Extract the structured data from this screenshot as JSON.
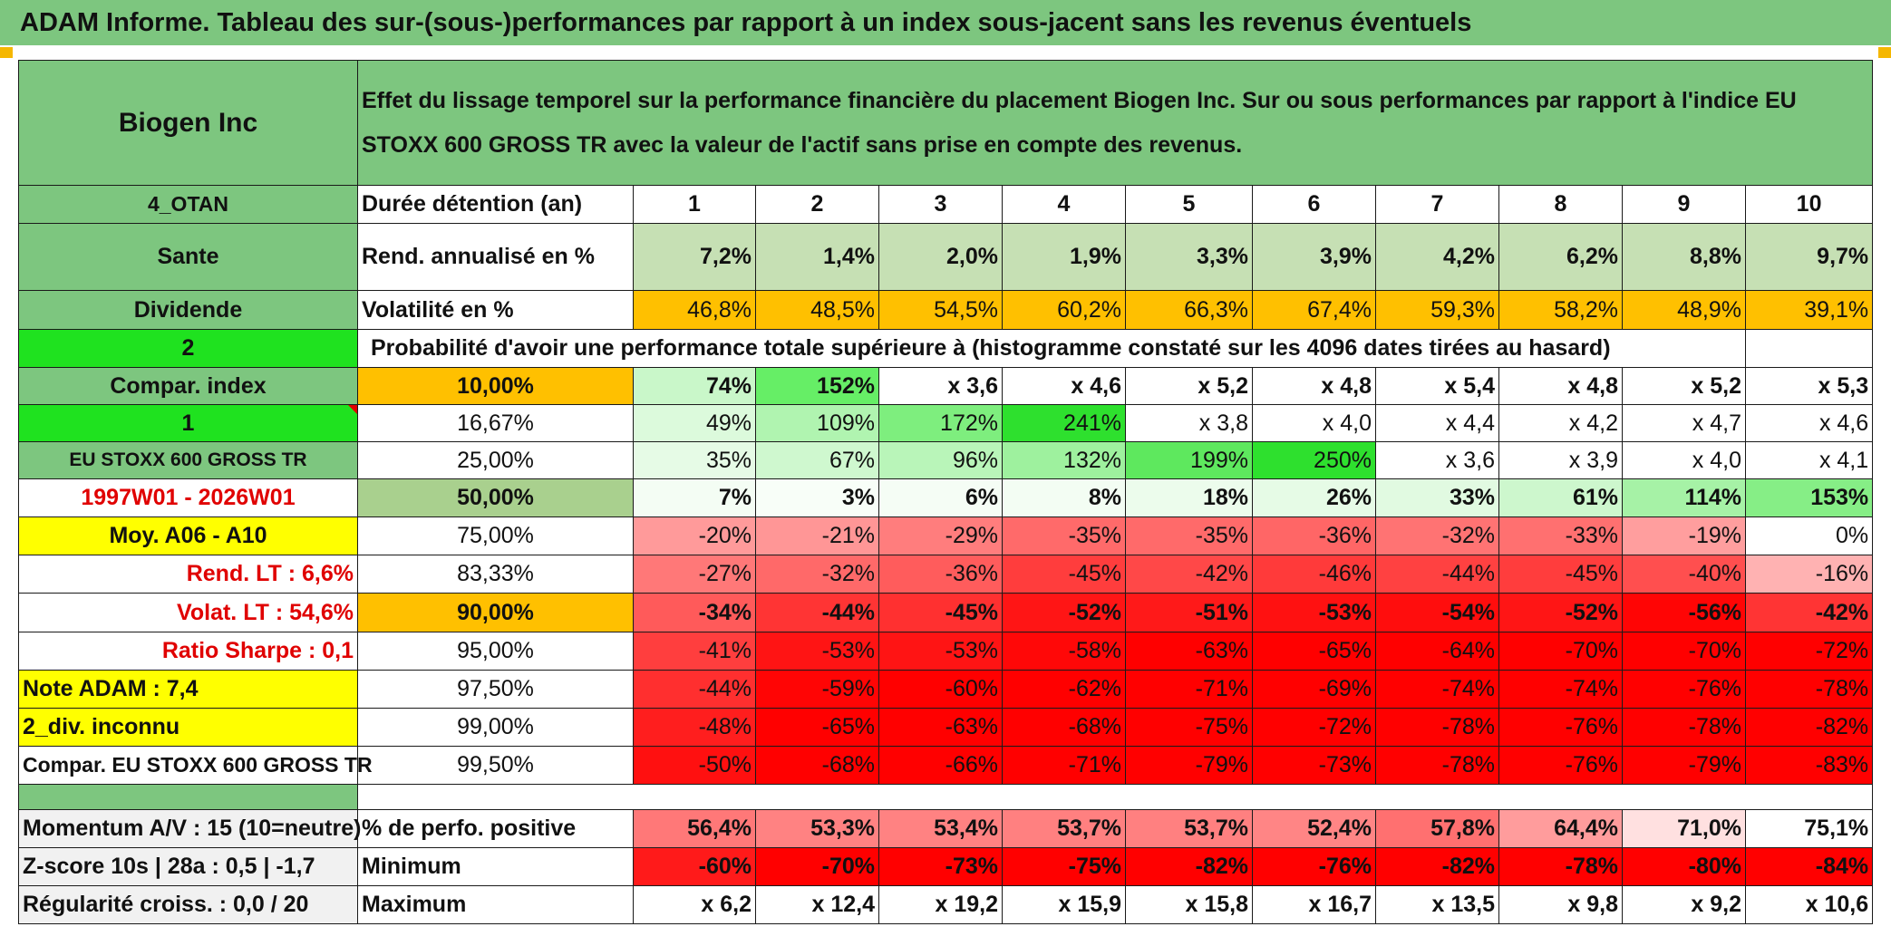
{
  "title": "ADAM Informe. Tableau des sur-(sous-)performances par rapport à un index sous-jacent sans les revenus éventuels",
  "asset_name": "Biogen Inc",
  "header_text": "Effet du lissage temporel sur la performance financière du placement Biogen Inc. Sur ou sous performances par rapport à l'indice EU STOXX 600 GROSS TR avec la valeur de l'actif sans prise en compte des revenus.",
  "colors": {
    "green_header": "#7dc67f",
    "lime": "#1fe21f",
    "yellow": "#ffff00",
    "orange": "#ffc000",
    "red_text": "#e00000"
  },
  "left_labels": {
    "code": "4_OTAN",
    "sector": "Sante",
    "dividend": "Dividende",
    "two": "2",
    "compar_index": "Compar. index",
    "one": "1",
    "index_name": "EU STOXX 600 GROSS TR",
    "period": "1997W01 - 2026W01",
    "moy": "Moy. A06 - A10",
    "rend_lt": "Rend. LT :   6,6%",
    "volat_lt": "Volat. LT :   54,6%",
    "sharpe": "Ratio Sharpe :   0,1",
    "note": "Note ADAM : 7,4",
    "div_inconnu": "2_div. inconnu",
    "compar_full": "Compar. EU STOXX 600 GROSS TR",
    "momentum": "Momentum A/V : 15 (10=neutre)",
    "zscore": "Z-score 10s | 28a : 0,5 | -1,7",
    "regularite": "Régularité croiss. : 0,0 / 20"
  },
  "row_labels": {
    "duree": "Durée détention (an)",
    "rend": "Rend. annualisé en %",
    "volat": "Volatilité en %",
    "proba": "Probabilité d'avoir une performance totale supérieure à (histogramme constaté sur les 4096 dates tirées au hasard)",
    "pos": "% de perfo. positive",
    "min": "Minimum",
    "max": "Maximum"
  },
  "years": [
    "1",
    "2",
    "3",
    "4",
    "5",
    "6",
    "7",
    "8",
    "9",
    "10"
  ],
  "rendement": [
    "7,2%",
    "1,4%",
    "2,0%",
    "1,9%",
    "3,3%",
    "3,9%",
    "4,2%",
    "6,2%",
    "8,8%",
    "9,7%"
  ],
  "volatilite": [
    "46,8%",
    "48,5%",
    "54,5%",
    "60,2%",
    "66,3%",
    "67,4%",
    "59,3%",
    "58,2%",
    "48,9%",
    "39,1%"
  ],
  "percentile_rows": [
    {
      "pct": "10,00%",
      "values": [
        "74%",
        "152%",
        "x 3,6",
        "x 4,6",
        "x 5,2",
        "x 4,8",
        "x 5,4",
        "x 4,8",
        "x 5,2",
        "x 5,3"
      ]
    },
    {
      "pct": "16,67%",
      "values": [
        "49%",
        "109%",
        "172%",
        "241%",
        "x 3,8",
        "x 4,0",
        "x 4,4",
        "x 4,2",
        "x 4,7",
        "x 4,6"
      ]
    },
    {
      "pct": "25,00%",
      "values": [
        "35%",
        "67%",
        "96%",
        "132%",
        "199%",
        "250%",
        "x 3,6",
        "x 3,9",
        "x 4,0",
        "x 4,1"
      ]
    },
    {
      "pct": "50,00%",
      "values": [
        "7%",
        "3%",
        "6%",
        "8%",
        "18%",
        "26%",
        "33%",
        "61%",
        "114%",
        "153%"
      ]
    },
    {
      "pct": "75,00%",
      "values": [
        "-20%",
        "-21%",
        "-29%",
        "-35%",
        "-35%",
        "-36%",
        "-32%",
        "-33%",
        "-19%",
        "0%"
      ]
    },
    {
      "pct": "83,33%",
      "values": [
        "-27%",
        "-32%",
        "-36%",
        "-45%",
        "-42%",
        "-46%",
        "-44%",
        "-45%",
        "-40%",
        "-16%"
      ]
    },
    {
      "pct": "90,00%",
      "values": [
        "-34%",
        "-44%",
        "-45%",
        "-52%",
        "-51%",
        "-53%",
        "-54%",
        "-52%",
        "-56%",
        "-42%"
      ]
    },
    {
      "pct": "95,00%",
      "values": [
        "-41%",
        "-53%",
        "-53%",
        "-58%",
        "-63%",
        "-65%",
        "-64%",
        "-70%",
        "-70%",
        "-72%"
      ]
    },
    {
      "pct": "97,50%",
      "values": [
        "-44%",
        "-59%",
        "-60%",
        "-62%",
        "-71%",
        "-69%",
        "-74%",
        "-74%",
        "-76%",
        "-78%"
      ]
    },
    {
      "pct": "99,00%",
      "values": [
        "-48%",
        "-65%",
        "-63%",
        "-68%",
        "-75%",
        "-72%",
        "-78%",
        "-76%",
        "-78%",
        "-82%"
      ]
    },
    {
      "pct": "99,50%",
      "values": [
        "-50%",
        "-68%",
        "-66%",
        "-71%",
        "-79%",
        "-73%",
        "-78%",
        "-76%",
        "-79%",
        "-83%"
      ]
    }
  ],
  "perf_positive": [
    "56,4%",
    "53,3%",
    "53,4%",
    "53,7%",
    "53,7%",
    "52,4%",
    "57,8%",
    "64,4%",
    "71,0%",
    "75,1%"
  ],
  "minimum": [
    "-60%",
    "-70%",
    "-73%",
    "-75%",
    "-82%",
    "-76%",
    "-82%",
    "-78%",
    "-80%",
    "-84%"
  ],
  "maximum": [
    "x 6,2",
    "x 12,4",
    "x 19,2",
    "x 15,9",
    "x 15,8",
    "x 16,7",
    "x 13,5",
    "x 9,8",
    "x 9,2",
    "x 10,6"
  ]
}
